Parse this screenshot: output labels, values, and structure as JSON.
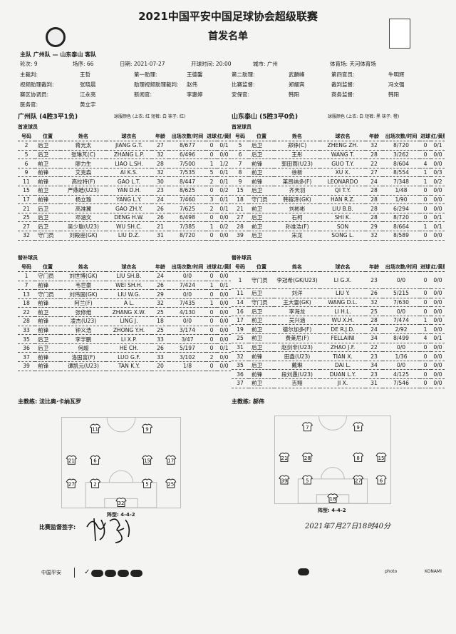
{
  "header": {
    "title": "2021中国平安中国足球协会超级联赛",
    "subtitle": "首发名单",
    "left_logo": "CFA",
    "right_logo": "中国平安 中超"
  },
  "match": {
    "teams_line": "主队 广州队 — 山东泰山 客队",
    "round": "轮次: 9",
    "seq": "场序: 66",
    "date": "日期: 2021-07-27",
    "kickoff": "开球时间: 20:00",
    "city": "城市: 广州",
    "stadium": "体育场: 天河体育场"
  },
  "officials": [
    [
      [
        "主裁判:",
        "王哲"
      ],
      [
        "第一助理:",
        "王德馨"
      ],
      [
        "第二助理:",
        "武麟峰"
      ],
      [
        "第四官员:",
        "牛明辉"
      ]
    ],
    [
      [
        "视频助理裁判:",
        "张晓晨"
      ],
      [
        "助理视频助理裁判:",
        "赵伟"
      ],
      [
        "比赛监督:",
        "郑耀宾"
      ],
      [
        "裁判监督:",
        "冯文强"
      ]
    ],
    [
      [
        "赛区协调员:",
        "江永亮"
      ],
      [
        "新闻官:",
        "李惠婷"
      ],
      [
        "安保官:",
        "韩阳"
      ],
      [
        "商务监督:",
        "韩阳"
      ]
    ],
    [
      [
        "医务官:",
        "黄立宇"
      ]
    ]
  ],
  "columns": [
    "号码",
    "位置",
    "姓名",
    "球衣名",
    "年龄",
    "出场次数/时间",
    "进球",
    "红/黄牌"
  ],
  "home": {
    "name": "广州队 (4胜3平1负)",
    "kit": "球服颜色 (上衣: 红 短裤: 白 袜子: 红)",
    "starters_label": "首发球员",
    "subs_label": "替补球员",
    "starters": [
      [
        "2",
        "后卫",
        "蒋光太",
        "JIANG G.T.",
        "27",
        "8/677",
        "0",
        "0/1"
      ],
      [
        "5",
        "后卫",
        "张琳芃(C)",
        "ZHANG L.P.",
        "32",
        "6/496",
        "0",
        "0/0"
      ],
      [
        "6",
        "前卫",
        "廖力生",
        "LIAO L.SH.",
        "28",
        "7/500",
        "1",
        "1/2"
      ],
      [
        "9",
        "前锋",
        "艾克森",
        "AI K.S.",
        "32",
        "7/535",
        "5",
        "0/1"
      ],
      [
        "11",
        "前锋",
        "高拉特(F)",
        "GAO L.T.",
        "30",
        "8/447",
        "2",
        "0/1"
      ],
      [
        "15",
        "前卫",
        "严鼎皓(U23)",
        "YAN D.H.",
        "23",
        "8/625",
        "0",
        "0/2"
      ],
      [
        "17",
        "前锋",
        "杨立瑜",
        "YANG L.Y.",
        "24",
        "7/460",
        "3",
        "0/1"
      ],
      [
        "21",
        "后卫",
        "高准翼",
        "GAO ZH.Y.",
        "26",
        "7/625",
        "2",
        "0/1"
      ],
      [
        "25",
        "后卫",
        "邓涵文",
        "DENG H.W.",
        "26",
        "6/498",
        "0",
        "0/0"
      ],
      [
        "27",
        "后卫",
        "吴少聪(U23)",
        "WU SH.C.",
        "21",
        "7/385",
        "1",
        "0/2"
      ],
      [
        "32",
        "守门员",
        "刘殿座(GK)",
        "LIU D.Z.",
        "31",
        "8/720",
        "0",
        "0/0"
      ]
    ],
    "subs": [
      [
        "1",
        "守门员",
        "刘世博(GK)",
        "LIU SH.B.",
        "24",
        "0/0",
        "0",
        "0/0"
      ],
      [
        "7",
        "前锋",
        "韦世豪",
        "WEI SH.H.",
        "26",
        "7/424",
        "1",
        "0/1"
      ],
      [
        "13",
        "守门员",
        "刘伟国(GK)",
        "LIU W.G.",
        "29",
        "0/0",
        "0",
        "0/0"
      ],
      [
        "18",
        "前锋",
        "阿兰(F)",
        "A L.",
        "32",
        "7/435",
        "1",
        "0/0"
      ],
      [
        "22",
        "前卫",
        "张修维",
        "ZHANG X.W.",
        "25",
        "4/130",
        "0",
        "0/0"
      ],
      [
        "28",
        "前锋",
        "凌杰(U23)",
        "LING J.",
        "18",
        "0/0",
        "0",
        "0/0"
      ],
      [
        "33",
        "前锋",
        "钟义浩",
        "ZHONG Y.H.",
        "25",
        "3/174",
        "0",
        "0/0"
      ],
      [
        "35",
        "后卫",
        "李学鹏",
        "LI X.P.",
        "33",
        "3/47",
        "0",
        "0/0"
      ],
      [
        "36",
        "后卫",
        "何超",
        "HE CH.",
        "26",
        "5/197",
        "0",
        "0/1"
      ],
      [
        "37",
        "前锋",
        "洛国富(F)",
        "LUO G.F.",
        "33",
        "3/102",
        "2",
        "0/0"
      ],
      [
        "39",
        "前锋",
        "谭凯元(U23)",
        "TAN K.Y.",
        "20",
        "1/8",
        "0",
        "0/0"
      ]
    ],
    "coach": "主教练:  法比奥·卡纳瓦罗",
    "formation": "阵型: 4-4-2",
    "lineup_rows": [
      [
        "11",
        "9"
      ],
      [
        "21",
        "6",
        "15",
        "17"
      ],
      [
        "27",
        "2",
        "5",
        "25"
      ],
      [
        "32"
      ]
    ]
  },
  "away": {
    "name": "山东泰山 (5胜3平0负)",
    "kit": "球服颜色 (上衣: 白 短裤: 黑 袜子: 橙)",
    "starters_label": "首发球员",
    "subs_label": "替补球员",
    "starters": [
      [
        "5",
        "后卫",
        "郑铮(C)",
        "ZHENG ZH.",
        "32",
        "8/720",
        "0",
        "0/1"
      ],
      [
        "6",
        "后卫",
        "王彤",
        "WANG T.",
        "28",
        "3/262",
        "0",
        "0/0"
      ],
      [
        "7",
        "前锋",
        "郭田雨(U23)",
        "GUO T.Y.",
        "22",
        "8/604",
        "4",
        "0/0"
      ],
      [
        "8",
        "前卫",
        "徐新",
        "XU X.",
        "27",
        "8/554",
        "1",
        "0/3"
      ],
      [
        "9",
        "前锋",
        "莱昂纳多(F)",
        "LEONARDO",
        "24",
        "7/348",
        "1",
        "0/2"
      ],
      [
        "15",
        "后卫",
        "齐天羽",
        "QI T.Y.",
        "28",
        "1/48",
        "0",
        "0/0"
      ],
      [
        "18",
        "守门员",
        "韩镕泽(GK)",
        "HAN R.Z.",
        "28",
        "1/90",
        "0",
        "0/0"
      ],
      [
        "21",
        "前卫",
        "刘彬彬",
        "LIU B.B.",
        "28",
        "6/294",
        "0",
        "0/0"
      ],
      [
        "27",
        "后卫",
        "石柯",
        "SHI K.",
        "28",
        "8/720",
        "0",
        "0/1"
      ],
      [
        "28",
        "前卫",
        "孙准浩(F)",
        "SON",
        "29",
        "8/664",
        "1",
        "0/1"
      ],
      [
        "39",
        "后卫",
        "宋龙",
        "SONG L.",
        "32",
        "8/589",
        "0",
        "0/0"
      ]
    ],
    "subs": [
      [
        "1",
        "守门员",
        "李冠希(GK/U23)",
        "LI G.X.",
        "23",
        "0/0",
        "0",
        "0/0"
      ],
      [
        "11",
        "后卫",
        "刘洋",
        "LIU Y.",
        "26",
        "5/215",
        "0",
        "0/0"
      ],
      [
        "14",
        "守门员",
        "王大雷(GK)",
        "WANG D.L.",
        "32",
        "7/630",
        "0",
        "0/0"
      ],
      [
        "16",
        "后卫",
        "李海龙",
        "LI H.L.",
        "25",
        "0/0",
        "0",
        "0/0"
      ],
      [
        "17",
        "前卫",
        "吴兴涵",
        "WU X.H.",
        "28",
        "7/474",
        "1",
        "0/0"
      ],
      [
        "19",
        "前卫",
        "德尔加多(F)",
        "DE R.J.D.",
        "24",
        "2/92",
        "1",
        "0/0"
      ],
      [
        "25",
        "前卫",
        "费莱尼(F)",
        "FELLAINI",
        "34",
        "8/499",
        "4",
        "0/1"
      ],
      [
        "31",
        "后卫",
        "赵剑非(U23)",
        "ZHAO J.F.",
        "22",
        "0/0",
        "0",
        "0/0"
      ],
      [
        "32",
        "前锋",
        "田鑫(U23)",
        "TIAN X.",
        "23",
        "1/36",
        "0",
        "0/0"
      ],
      [
        "35",
        "后卫",
        "戴琳",
        "DAI L.",
        "34",
        "0/0",
        "0",
        "0/0"
      ],
      [
        "36",
        "前锋",
        "段刘愚(U23)",
        "DUAN L.Y.",
        "23",
        "4/125",
        "0",
        "0/0"
      ],
      [
        "37",
        "前卫",
        "吉翔",
        "JI X.",
        "31",
        "7/546",
        "0",
        "0/0"
      ]
    ],
    "coach": "主教练:  郝伟",
    "formation": "阵型: 4-4-2",
    "lineup_rows": [
      [
        "7",
        "9"
      ],
      [
        "21",
        "28",
        "8",
        "15"
      ],
      [
        "39",
        "5",
        "27",
        "6"
      ],
      [
        "18"
      ]
    ]
  },
  "signature": {
    "label": "比赛监督签字:",
    "signer": "郑耀宾",
    "datetime": "2021年7月27日18时40分"
  },
  "footer": {
    "logos": [
      "中国平安",
      "NIKE",
      "上汽通用",
      "mlz",
      "",
      "澳神",
      "",
      "",
      "",
      "",
      "KONAMI"
    ],
    "left_text": "中国平安",
    "right_text": "KONAMI",
    "photo": "photo"
  }
}
